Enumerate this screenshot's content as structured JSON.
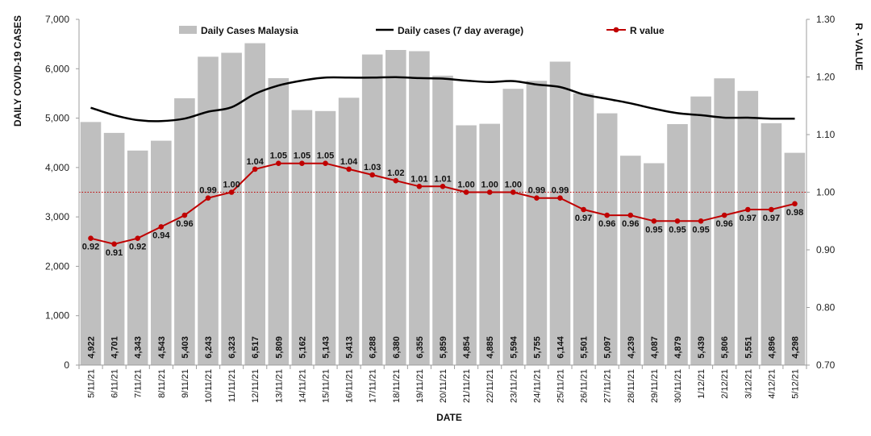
{
  "chart_data": {
    "type": "bar",
    "title": "",
    "xlabel": "DATE",
    "ylabel": "DAILY COVID-19 CASES",
    "y2label": "R - VALUE",
    "ylim": [
      0,
      7000
    ],
    "y2lim": [
      0.7,
      1.3
    ],
    "yticks": [
      "0",
      "1,000",
      "2,000",
      "3,000",
      "4,000",
      "5,000",
      "6,000",
      "7,000"
    ],
    "y2ticks": [
      "0.70",
      "0.80",
      "0.90",
      "1.00",
      "1.10",
      "1.20",
      "1.30"
    ],
    "reference_line": 1.0,
    "legend": [
      "Daily Cases Malaysia",
      "Daily cases (7 day average)",
      "R value"
    ],
    "categories": [
      "5/11/21",
      "6/11/21",
      "7/11/21",
      "8/11/21",
      "9/11/21",
      "10/11/21",
      "11/11/21",
      "12/11/21",
      "13/11/21",
      "14/11/21",
      "15/11/21",
      "16/11/21",
      "17/11/21",
      "18/11/21",
      "19/11/21",
      "20/11/21",
      "21/11/21",
      "22/11/21",
      "23/11/21",
      "24/11/21",
      "25/11/21",
      "26/11/21",
      "27/11/21",
      "28/11/21",
      "29/11/21",
      "30/11/21",
      "1/12/21",
      "2/12/21",
      "3/12/21",
      "4/12/21",
      "5/12/21"
    ],
    "series": [
      {
        "name": "Daily Cases Malaysia",
        "type": "bar",
        "axis": "left",
        "values": [
          4922,
          4701,
          4343,
          4543,
          5403,
          6243,
          6323,
          6517,
          5809,
          5162,
          5143,
          5413,
          6288,
          6380,
          6355,
          5859,
          4854,
          4885,
          5594,
          5755,
          6144,
          5501,
          5097,
          4239,
          4087,
          4879,
          5439,
          5806,
          5551,
          4896,
          4298
        ],
        "labels": [
          "4,922",
          "4,701",
          "4,343",
          "4,543",
          "5,403",
          "6,243",
          "6,323",
          "6,517",
          "5,809",
          "5,162",
          "5,143",
          "5,413",
          "6,288",
          "6,380",
          "6,355",
          "5,859",
          "4,854",
          "4,885",
          "5,594",
          "5,755",
          "6,144",
          "5,501",
          "5,097",
          "4,239",
          "4,087",
          "4,879",
          "5,439",
          "5,806",
          "5,551",
          "4,896",
          "4,298"
        ]
      },
      {
        "name": "Daily cases (7 day average)",
        "type": "line",
        "axis": "left",
        "values": [
          5210,
          5060,
          4960,
          4940,
          4990,
          5130,
          5220,
          5490,
          5660,
          5760,
          5820,
          5820,
          5820,
          5830,
          5810,
          5800,
          5760,
          5730,
          5750,
          5680,
          5630,
          5480,
          5390,
          5300,
          5190,
          5100,
          5060,
          5010,
          5010,
          4990,
          4990
        ]
      },
      {
        "name": "R value",
        "type": "line",
        "axis": "right",
        "values": [
          0.92,
          0.91,
          0.92,
          0.94,
          0.96,
          0.99,
          1.0,
          1.04,
          1.05,
          1.05,
          1.05,
          1.04,
          1.03,
          1.02,
          1.01,
          1.01,
          1.0,
          1.0,
          1.0,
          0.99,
          0.99,
          0.97,
          0.96,
          0.96,
          0.95,
          0.95,
          0.95,
          0.96,
          0.97,
          0.97,
          0.98
        ],
        "labels": [
          "0.92",
          "0.91",
          "0.92",
          "0.94",
          "0.96",
          "0.99",
          "1.00",
          "1.04",
          "1.05",
          "1.05",
          "1.05",
          "1.04",
          "1.03",
          "1.02",
          "1.01",
          "1.01",
          "1.00",
          "1.00",
          "1.00",
          "0.99",
          "0.99",
          "0.97",
          "0.96",
          "0.96",
          "0.95",
          "0.95",
          "0.95",
          "0.96",
          "0.97",
          "0.97",
          "0.98"
        ]
      }
    ],
    "colors": {
      "bar": "#bfbfbf",
      "avg_line": "#000000",
      "r_line": "#c00000",
      "axis": "#9e9e9e",
      "text": "#111111"
    }
  }
}
